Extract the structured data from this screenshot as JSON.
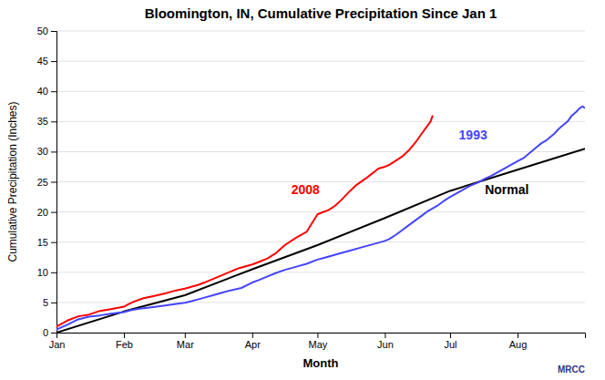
{
  "chart_data": {
    "type": "line",
    "title": "Bloomington, IN, Cumulative Precipitation Since Jan 1",
    "xlabel": "Month",
    "ylabel": "Cumulative Precipitation (Inches)",
    "xlim": [
      0,
      243
    ],
    "ylim": [
      0,
      50
    ],
    "xticks": [
      {
        "value": 0,
        "label": "Jan"
      },
      {
        "value": 31,
        "label": "Feb"
      },
      {
        "value": 59,
        "label": "Mar"
      },
      {
        "value": 90,
        "label": "Apr"
      },
      {
        "value": 120,
        "label": "May"
      },
      {
        "value": 151,
        "label": "Jun"
      },
      {
        "value": 181,
        "label": "Jul"
      },
      {
        "value": 212,
        "label": "Aug"
      }
    ],
    "yticks": [
      0,
      5,
      10,
      15,
      20,
      25,
      30,
      35,
      40,
      45,
      50
    ],
    "grid": "y",
    "series": [
      {
        "color": "#000000",
        "x": [
          0,
          31,
          59,
          90,
          120,
          151,
          181,
          212,
          243
        ],
        "values": [
          0,
          3.5,
          6.2,
          10.5,
          14.5,
          19.0,
          23.5,
          27.0,
          30.5
        ]
      },
      {
        "color": "#ff0000",
        "x": [
          0,
          5,
          10,
          15,
          20,
          25,
          31,
          33,
          36,
          40,
          44,
          50,
          55,
          59,
          62,
          65,
          68,
          72,
          76,
          80,
          84,
          90,
          93,
          97,
          101,
          105,
          110,
          115,
          120,
          122,
          125,
          128,
          131,
          135,
          138,
          142,
          146,
          148,
          151,
          153,
          156,
          159,
          162,
          165,
          168,
          170,
          172,
          173
        ],
        "values": [
          1.0,
          2.0,
          2.7,
          3.0,
          3.6,
          3.9,
          4.3,
          4.7,
          5.2,
          5.7,
          6.0,
          6.5,
          7.0,
          7.3,
          7.6,
          7.9,
          8.3,
          8.9,
          9.5,
          10.1,
          10.7,
          11.3,
          11.7,
          12.3,
          13.2,
          14.5,
          15.7,
          16.7,
          19.6,
          19.9,
          20.3,
          21.0,
          22.0,
          23.5,
          24.5,
          25.5,
          26.6,
          27.2,
          27.5,
          27.8,
          28.5,
          29.2,
          30.2,
          31.5,
          33.0,
          34.0,
          35.0,
          36.0
        ]
      },
      {
        "color": "#4444ff",
        "x": [
          0,
          5,
          10,
          15,
          20,
          25,
          31,
          34,
          38,
          42,
          46,
          50,
          55,
          59,
          62,
          65,
          68,
          72,
          76,
          80,
          85,
          90,
          93,
          97,
          101,
          105,
          110,
          115,
          120,
          123,
          126,
          130,
          135,
          140,
          145,
          151,
          153,
          156,
          159,
          162,
          165,
          168,
          171,
          175,
          178,
          181,
          184,
          187,
          190,
          194,
          197,
          200,
          203,
          206,
          209,
          212,
          215,
          217,
          219,
          221,
          223,
          225,
          227,
          229,
          231,
          233,
          235,
          237,
          239,
          240,
          241,
          242,
          243
        ],
        "values": [
          0.5,
          1.3,
          2.2,
          2.65,
          2.85,
          3.15,
          3.4,
          3.7,
          3.95,
          4.1,
          4.3,
          4.5,
          4.75,
          4.95,
          5.2,
          5.5,
          5.8,
          6.2,
          6.6,
          7.0,
          7.4,
          8.3,
          8.7,
          9.3,
          9.9,
          10.4,
          10.9,
          11.4,
          12.1,
          12.4,
          12.7,
          13.1,
          13.6,
          14.1,
          14.6,
          15.2,
          15.5,
          16.2,
          17.0,
          17.8,
          18.6,
          19.4,
          20.2,
          21.0,
          21.8,
          22.5,
          23.1,
          23.7,
          24.3,
          24.9,
          25.5,
          26.0,
          26.6,
          27.2,
          27.8,
          28.4,
          29.0,
          29.6,
          30.2,
          30.8,
          31.4,
          31.8,
          32.4,
          33.0,
          33.8,
          34.4,
          35.0,
          36.0,
          36.6,
          37.0,
          37.3,
          37.5,
          37.2
        ]
      }
    ],
    "annotations": [
      {
        "text": "2008",
        "x": 108,
        "y": 23,
        "color": "#ff0000"
      },
      {
        "text": "1993",
        "x": 185,
        "y": 32,
        "color": "#4444ff"
      },
      {
        "text": "Normal",
        "x": 197,
        "y": 23,
        "color": "#000000"
      }
    ],
    "footnote": "MRCC"
  }
}
